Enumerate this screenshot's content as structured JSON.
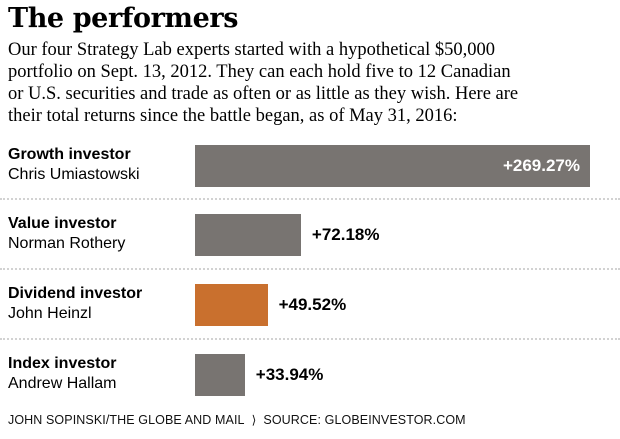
{
  "header": {
    "title": "The performers",
    "intro_lines": [
      "Our four Strategy Lab experts started with a hypothetical $50,000",
      "portfolio on Sept. 13, 2012. They can each hold five to 12 Canadian",
      "or U.S. securities and trade as often or as little as they wish. Here are",
      "their total returns since the battle began, as of May 31, 2016:"
    ]
  },
  "chart_data": {
    "type": "bar",
    "orientation": "horizontal",
    "title": "The performers",
    "unit": "total return since Sept. 13, 2012, as of May 31, 2016",
    "xlim": [
      0,
      280
    ],
    "grid": false,
    "legend": false,
    "categories": [
      "Chris Umiastowski",
      "Norman Rothery",
      "John Heinzl",
      "Andrew Hallam"
    ],
    "values": [
      269.27,
      72.18,
      49.52,
      33.94
    ],
    "colors": {
      "bar_default": "#787471",
      "bar_highlight": "#c9702e"
    },
    "rows": [
      {
        "role": "Growth investor",
        "name": "Chris Umiastowski",
        "value": 269.27,
        "label": "+269.27%",
        "color": "#787471",
        "value_label_position": "inside"
      },
      {
        "role": "Value investor",
        "name": "Norman Rothery",
        "value": 72.18,
        "label": "+72.18%",
        "color": "#787471",
        "value_label_position": "outside"
      },
      {
        "role": "Dividend investor",
        "name": "John Heinzl",
        "value": 49.52,
        "label": "+49.52%",
        "color": "#c9702e",
        "value_label_position": "outside"
      },
      {
        "role": "Index investor",
        "name": "Andrew Hallam",
        "value": 33.94,
        "label": "+33.94%",
        "color": "#787471",
        "value_label_position": "outside"
      }
    ]
  },
  "footer": {
    "credit": "JOHN SOPINSKI/THE GLOBE AND MAIL",
    "separator": "⟩",
    "source": "SOURCE: GLOBEINVESTOR.COM"
  }
}
